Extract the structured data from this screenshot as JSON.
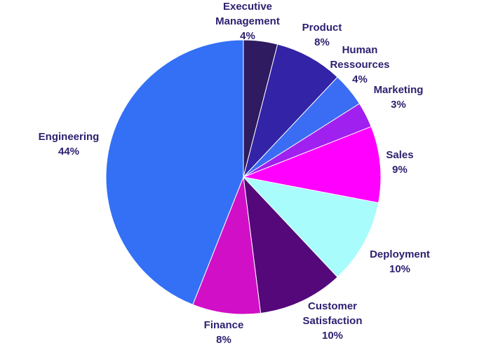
{
  "chart_data": {
    "type": "pie",
    "slices": [
      {
        "label": [
          "Executive",
          "Management"
        ],
        "value": 4,
        "percent_label": "4%",
        "color": "#2e1b60"
      },
      {
        "label": [
          "Product"
        ],
        "value": 8,
        "percent_label": "8%",
        "color": "#3323a6"
      },
      {
        "label": [
          "Human",
          "Ressources"
        ],
        "value": 4,
        "percent_label": "4%",
        "color": "#3a6cf4"
      },
      {
        "label": [
          "Marketing"
        ],
        "value": 3,
        "percent_label": "3%",
        "color": "#a020f0"
      },
      {
        "label": [
          "Sales"
        ],
        "value": 9,
        "percent_label": "9%",
        "color": "#ff00ff"
      },
      {
        "label": [
          "Deployment"
        ],
        "value": 10,
        "percent_label": "10%",
        "color": "#a8fcfc"
      },
      {
        "label": [
          "Customer",
          "Satisfaction"
        ],
        "value": 10,
        "percent_label": "10%",
        "color": "#54087a"
      },
      {
        "label": [
          "Finance"
        ],
        "value": 8,
        "percent_label": "8%",
        "color": "#d10fc7"
      },
      {
        "label": [
          "Engineering"
        ],
        "value": 44,
        "percent_label": "44%",
        "color": "#3370f5"
      }
    ]
  }
}
